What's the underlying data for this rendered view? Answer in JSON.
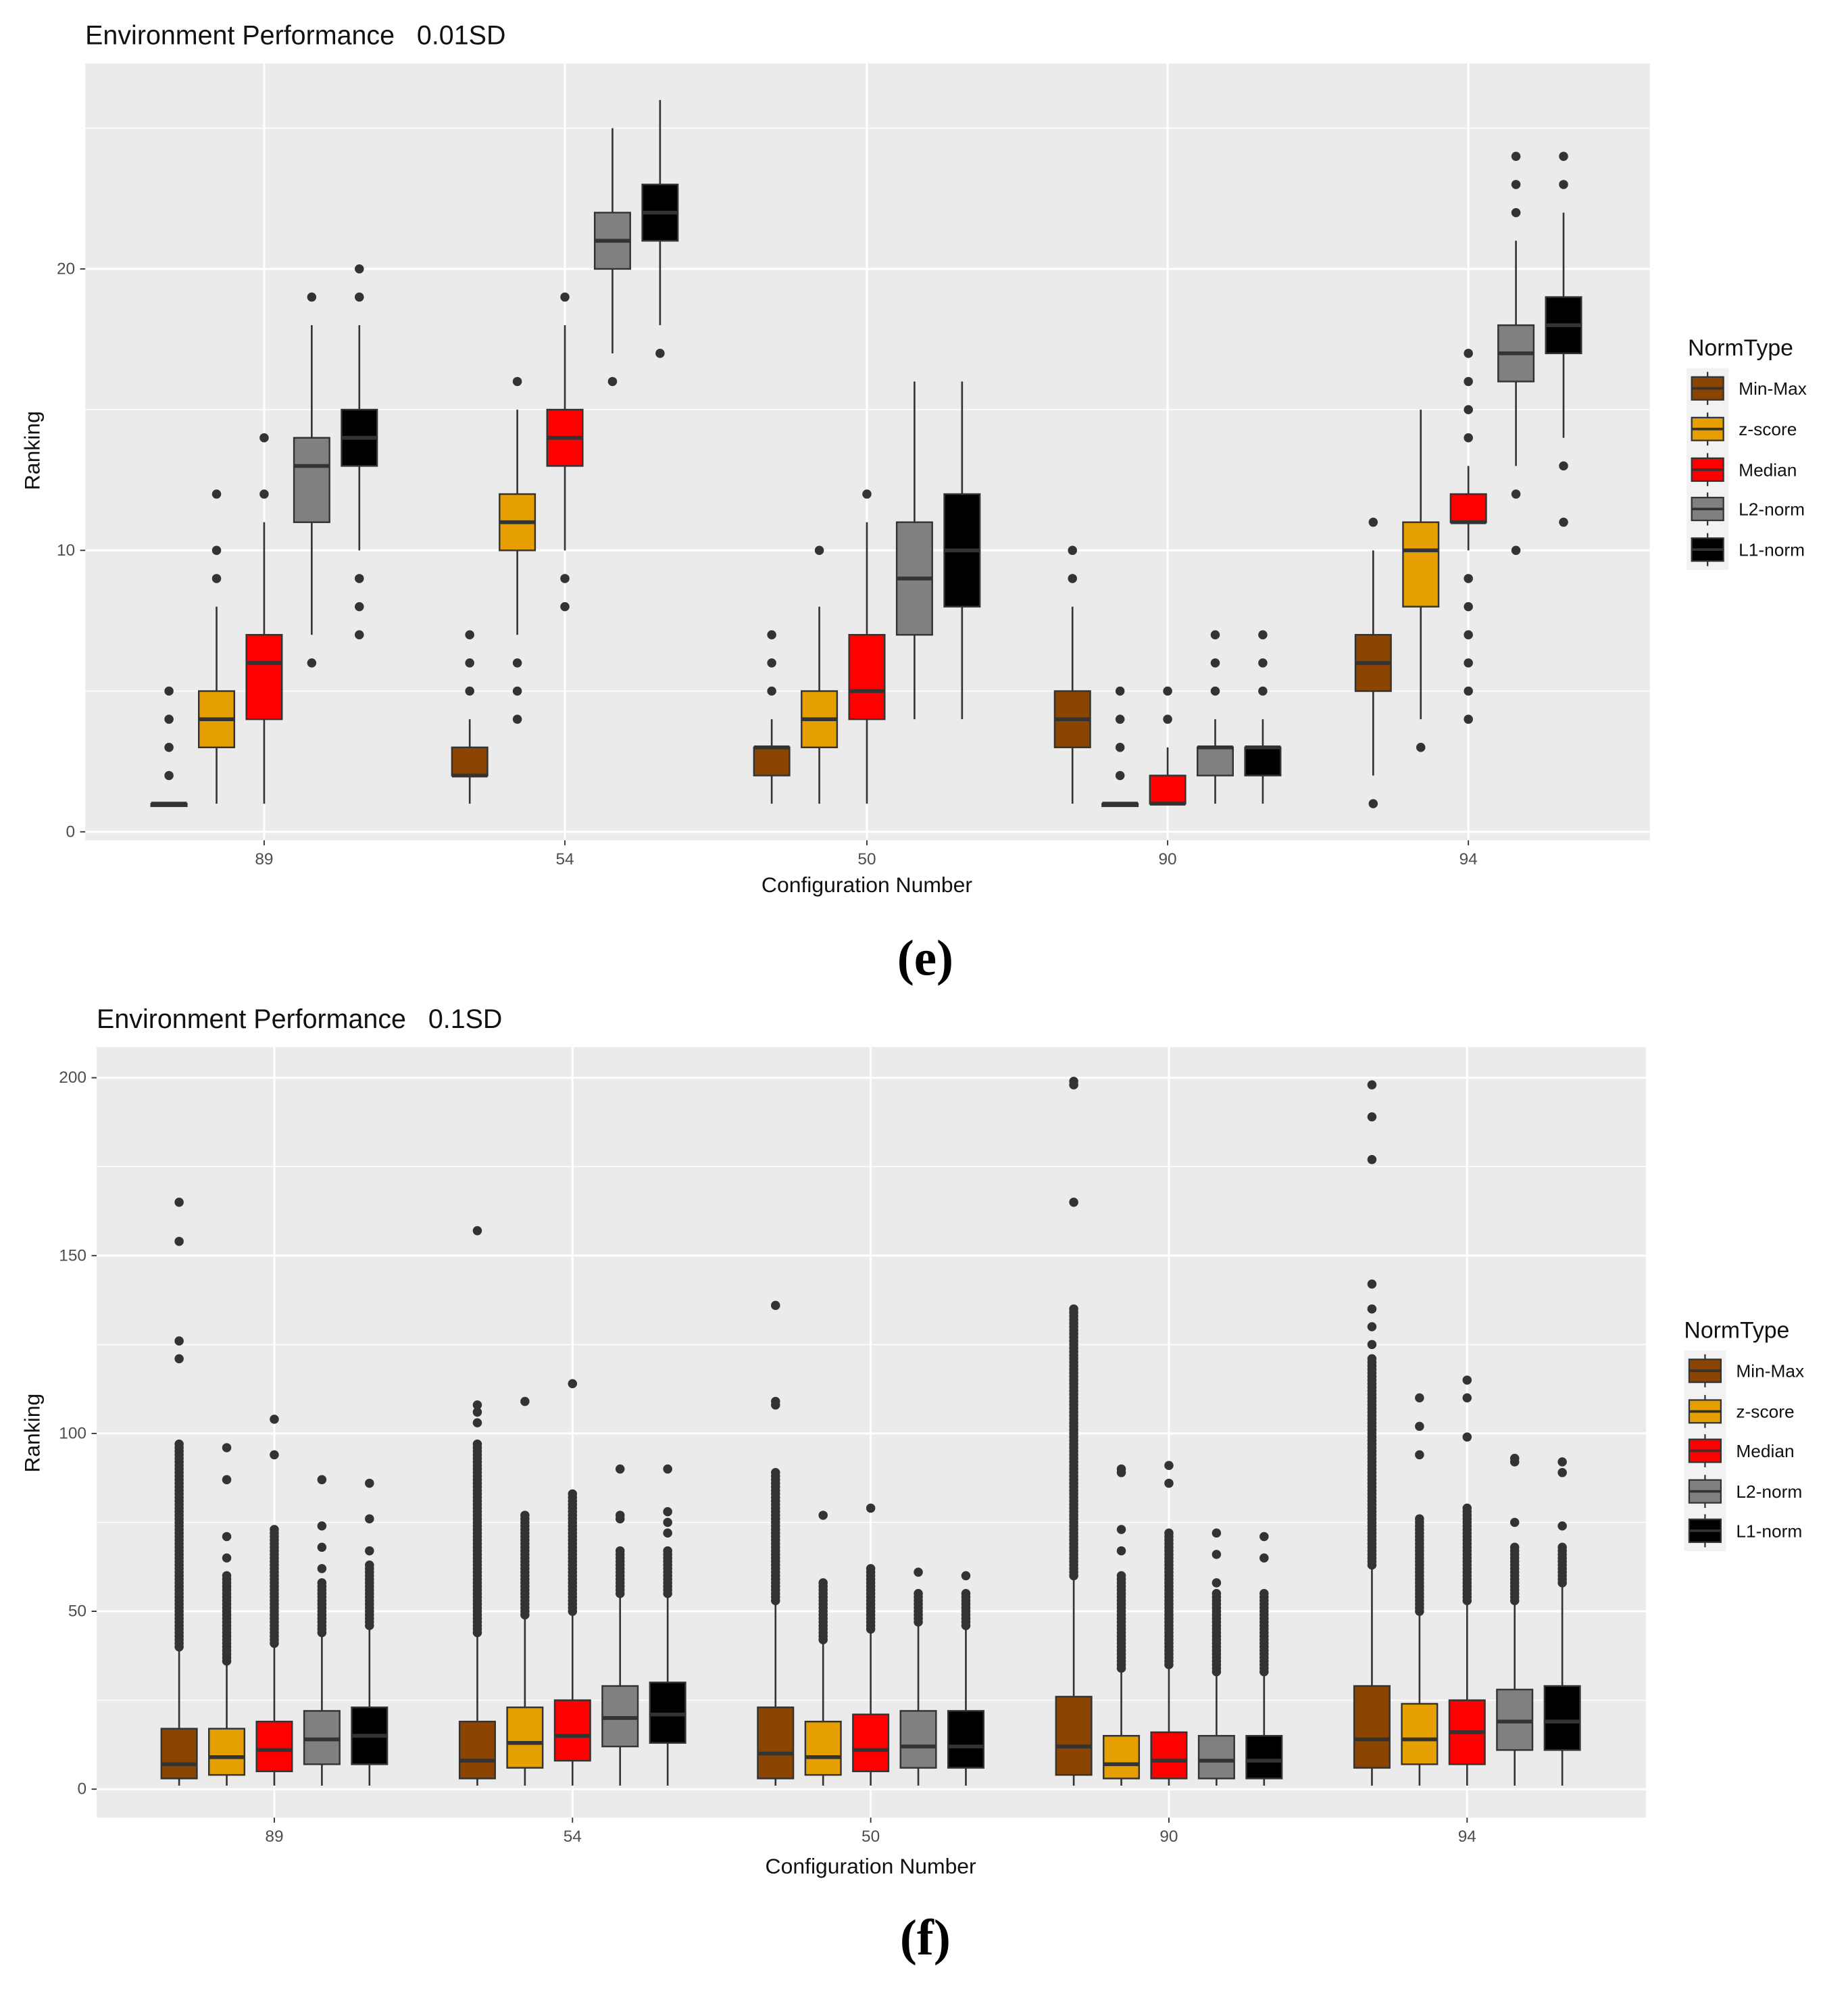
{
  "chart_data": [
    {
      "type": "box",
      "title": "Environment Performance   0.01SD",
      "caption": "(e)",
      "xlabel": "Configuration Number",
      "ylabel": "Ranking",
      "ylim": [
        -0.3,
        27.3
      ],
      "yticks": [
        0,
        10,
        20
      ],
      "ygrid_minor": [
        5,
        15,
        25
      ],
      "categories": [
        "89",
        "54",
        "50",
        "90",
        "94"
      ],
      "legend": {
        "title": "NormType",
        "position": "right"
      },
      "series": [
        {
          "name": "Min-Max",
          "color": "#8B4500",
          "boxes": [
            {
              "q1": 1,
              "med": 1,
              "q3": 1,
              "lo": 1,
              "hi": 1,
              "out": [
                2,
                3,
                4,
                5
              ]
            },
            {
              "q1": 2,
              "med": 2,
              "q3": 3,
              "lo": 1,
              "hi": 4,
              "out": [
                5,
                6,
                7
              ]
            },
            {
              "q1": 2,
              "med": 3,
              "q3": 3,
              "lo": 1,
              "hi": 4,
              "out": [
                5,
                6,
                7
              ]
            },
            {
              "q1": 3,
              "med": 4,
              "q3": 5,
              "lo": 1,
              "hi": 8,
              "out": [
                9,
                10
              ]
            },
            {
              "q1": 5,
              "med": 6,
              "q3": 7,
              "lo": 2,
              "hi": 10,
              "out": [
                1,
                11
              ]
            }
          ]
        },
        {
          "name": "z-score",
          "color": "#E69F00",
          "boxes": [
            {
              "q1": 3,
              "med": 4,
              "q3": 5,
              "lo": 1,
              "hi": 8,
              "out": [
                9,
                10,
                12
              ]
            },
            {
              "q1": 10,
              "med": 11,
              "q3": 12,
              "lo": 7,
              "hi": 15,
              "out": [
                4,
                5,
                6,
                16
              ]
            },
            {
              "q1": 3,
              "med": 4,
              "q3": 5,
              "lo": 1,
              "hi": 8,
              "out": [
                10
              ]
            },
            {
              "q1": 1,
              "med": 1,
              "q3": 1,
              "lo": 1,
              "hi": 1,
              "out": [
                2,
                3,
                4,
                5
              ]
            },
            {
              "q1": 8,
              "med": 10,
              "q3": 11,
              "lo": 4,
              "hi": 15,
              "out": [
                3
              ]
            }
          ]
        },
        {
          "name": "Median",
          "color": "#FF0000",
          "boxes": [
            {
              "q1": 4,
              "med": 6,
              "q3": 7,
              "lo": 1,
              "hi": 11,
              "out": [
                12,
                14
              ]
            },
            {
              "q1": 13,
              "med": 14,
              "q3": 15,
              "lo": 10,
              "hi": 18,
              "out": [
                8,
                9,
                19
              ]
            },
            {
              "q1": 4,
              "med": 5,
              "q3": 7,
              "lo": 1,
              "hi": 11,
              "out": [
                12
              ]
            },
            {
              "q1": 1,
              "med": 1,
              "q3": 2,
              "lo": 1,
              "hi": 3,
              "out": [
                4,
                5
              ]
            },
            {
              "q1": 11,
              "med": 11,
              "q3": 12,
              "lo": 10,
              "hi": 13,
              "out": [
                4,
                5,
                6,
                7,
                8,
                9,
                14,
                15,
                16,
                17
              ]
            }
          ]
        },
        {
          "name": "L2-norm",
          "color": "#808080",
          "boxes": [
            {
              "q1": 11,
              "med": 13,
              "q3": 14,
              "lo": 7,
              "hi": 18,
              "out": [
                6,
                19
              ]
            },
            {
              "q1": 20,
              "med": 21,
              "q3": 22,
              "lo": 17,
              "hi": 25,
              "out": [
                16
              ]
            },
            {
              "q1": 7,
              "med": 9,
              "q3": 11,
              "lo": 4,
              "hi": 16,
              "out": []
            },
            {
              "q1": 2,
              "med": 3,
              "q3": 3,
              "lo": 1,
              "hi": 4,
              "out": [
                5,
                6,
                7
              ]
            },
            {
              "q1": 16,
              "med": 17,
              "q3": 18,
              "lo": 13,
              "hi": 21,
              "out": [
                10,
                12,
                22,
                23,
                24
              ]
            }
          ]
        },
        {
          "name": "L1-norm",
          "color": "#000000",
          "boxes": [
            {
              "q1": 13,
              "med": 14,
              "q3": 15,
              "lo": 10,
              "hi": 18,
              "out": [
                7,
                8,
                9,
                19,
                20
              ]
            },
            {
              "q1": 21,
              "med": 22,
              "q3": 23,
              "lo": 18,
              "hi": 26,
              "out": [
                17
              ]
            },
            {
              "q1": 8,
              "med": 10,
              "q3": 12,
              "lo": 4,
              "hi": 16,
              "out": []
            },
            {
              "q1": 2,
              "med": 3,
              "q3": 3,
              "lo": 1,
              "hi": 4,
              "out": [
                5,
                6,
                7
              ]
            },
            {
              "q1": 17,
              "med": 18,
              "q3": 19,
              "lo": 14,
              "hi": 22,
              "out": [
                11,
                13,
                23,
                24
              ]
            }
          ]
        }
      ]
    },
    {
      "type": "box",
      "title": "Environment Performance   0.1SD",
      "caption": "(f)",
      "xlabel": "Configuration Number",
      "ylabel": "Ranking",
      "ylim": [
        -8,
        208.6
      ],
      "yticks": [
        0,
        50,
        100,
        150,
        200
      ],
      "ygrid_minor": [
        25,
        75,
        125,
        175
      ],
      "categories": [
        "89",
        "54",
        "50",
        "90",
        "94"
      ],
      "legend": {
        "title": "NormType",
        "position": "right"
      },
      "series": [
        {
          "name": "Min-Max",
          "color": "#8B4500",
          "boxes": [
            {
              "q1": 3,
              "med": 7,
              "q3": 17,
              "lo": 1,
              "hi": 40,
              "dense": [
                40,
                97
              ],
              "out": [
                121,
                126,
                154,
                165
              ]
            },
            {
              "q1": 3,
              "med": 8,
              "q3": 19,
              "lo": 1,
              "hi": 44,
              "dense": [
                44,
                97
              ],
              "out": [
                103,
                106,
                108,
                157
              ]
            },
            {
              "q1": 3,
              "med": 10,
              "q3": 23,
              "lo": 1,
              "hi": 53,
              "dense": [
                53,
                89
              ],
              "out": [
                108,
                109,
                136
              ]
            },
            {
              "q1": 4,
              "med": 12,
              "q3": 26,
              "lo": 1,
              "hi": 60,
              "dense": [
                60,
                135
              ],
              "out": [
                165,
                198,
                199
              ]
            },
            {
              "q1": 6,
              "med": 14,
              "q3": 29,
              "lo": 1,
              "hi": 63,
              "dense": [
                63,
                121
              ],
              "out": [
                125,
                130,
                135,
                142,
                177,
                189,
                198
              ]
            }
          ]
        },
        {
          "name": "z-score",
          "color": "#E69F00",
          "boxes": [
            {
              "q1": 4,
              "med": 9,
              "q3": 17,
              "lo": 1,
              "hi": 36,
              "dense": [
                36,
                60
              ],
              "out": [
                65,
                71,
                87,
                96
              ]
            },
            {
              "q1": 6,
              "med": 13,
              "q3": 23,
              "lo": 1,
              "hi": 49,
              "dense": [
                49,
                77
              ],
              "out": [
                109
              ]
            },
            {
              "q1": 4,
              "med": 9,
              "q3": 19,
              "lo": 1,
              "hi": 42,
              "dense": [
                42,
                58
              ],
              "out": [
                77
              ]
            },
            {
              "q1": 3,
              "med": 7,
              "q3": 15,
              "lo": 1,
              "hi": 34,
              "dense": [
                34,
                60
              ],
              "out": [
                67,
                73,
                89,
                90
              ]
            },
            {
              "q1": 7,
              "med": 14,
              "q3": 24,
              "lo": 1,
              "hi": 50,
              "dense": [
                50,
                76
              ],
              "out": [
                94,
                102,
                110
              ]
            }
          ]
        },
        {
          "name": "Median",
          "color": "#FF0000",
          "boxes": [
            {
              "q1": 5,
              "med": 11,
              "q3": 19,
              "lo": 1,
              "hi": 41,
              "dense": [
                41,
                73
              ],
              "out": [
                94,
                104
              ]
            },
            {
              "q1": 8,
              "med": 15,
              "q3": 25,
              "lo": 1,
              "hi": 50,
              "dense": [
                50,
                83
              ],
              "out": [
                114
              ]
            },
            {
              "q1": 5,
              "med": 11,
              "q3": 21,
              "lo": 1,
              "hi": 45,
              "dense": [
                45,
                62
              ],
              "out": [
                79
              ]
            },
            {
              "q1": 3,
              "med": 8,
              "q3": 16,
              "lo": 1,
              "hi": 35,
              "dense": [
                35,
                72
              ],
              "out": [
                86,
                91
              ]
            },
            {
              "q1": 7,
              "med": 16,
              "q3": 25,
              "lo": 1,
              "hi": 53,
              "dense": [
                53,
                79
              ],
              "out": [
                99,
                110,
                115
              ]
            }
          ]
        },
        {
          "name": "L2-norm",
          "color": "#808080",
          "boxes": [
            {
              "q1": 7,
              "med": 14,
              "q3": 22,
              "lo": 1,
              "hi": 44,
              "dense": [
                44,
                58
              ],
              "out": [
                62,
                68,
                74,
                87
              ]
            },
            {
              "q1": 12,
              "med": 20,
              "q3": 29,
              "lo": 1,
              "hi": 55,
              "dense": [
                55,
                67
              ],
              "out": [
                76,
                77,
                90
              ]
            },
            {
              "q1": 6,
              "med": 12,
              "q3": 22,
              "lo": 1,
              "hi": 47,
              "dense": [
                47,
                55
              ],
              "out": [
                61
              ]
            },
            {
              "q1": 3,
              "med": 8,
              "q3": 15,
              "lo": 1,
              "hi": 33,
              "dense": [
                33,
                55
              ],
              "out": [
                58,
                66,
                72
              ]
            },
            {
              "q1": 11,
              "med": 19,
              "q3": 28,
              "lo": 1,
              "hi": 53,
              "dense": [
                53,
                68
              ],
              "out": [
                75,
                92,
                93
              ]
            }
          ]
        },
        {
          "name": "L1-norm",
          "color": "#000000",
          "boxes": [
            {
              "q1": 7,
              "med": 15,
              "q3": 23,
              "lo": 1,
              "hi": 46,
              "dense": [
                46,
                63
              ],
              "out": [
                67,
                76,
                86
              ]
            },
            {
              "q1": 13,
              "med": 21,
              "q3": 30,
              "lo": 1,
              "hi": 55,
              "dense": [
                55,
                67
              ],
              "out": [
                72,
                75,
                78,
                90
              ]
            },
            {
              "q1": 6,
              "med": 12,
              "q3": 22,
              "lo": 1,
              "hi": 46,
              "dense": [
                46,
                55
              ],
              "out": [
                60
              ]
            },
            {
              "q1": 3,
              "med": 8,
              "q3": 15,
              "lo": 1,
              "hi": 33,
              "dense": [
                33,
                55
              ],
              "out": [
                65,
                71
              ]
            },
            {
              "q1": 11,
              "med": 19,
              "q3": 29,
              "lo": 1,
              "hi": 58,
              "dense": [
                58,
                68
              ],
              "out": [
                74,
                89,
                92
              ]
            }
          ]
        }
      ]
    }
  ]
}
